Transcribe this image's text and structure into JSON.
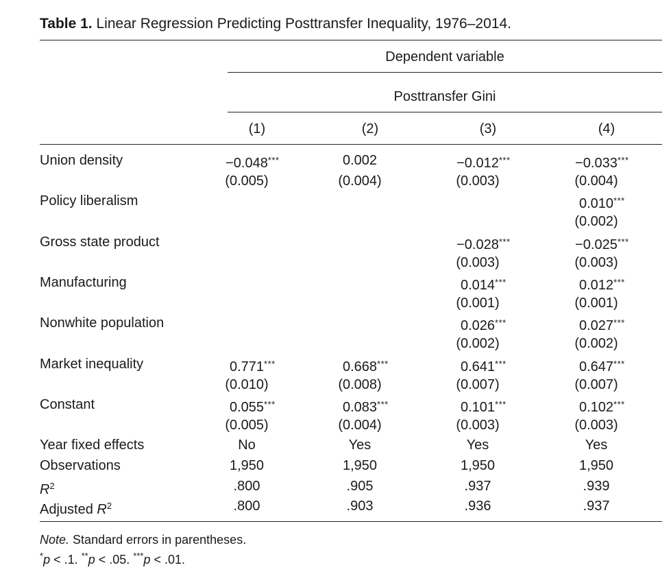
{
  "caption": {
    "label": "Table 1.",
    "title": "Linear Regression Predicting Posttransfer Inequality, 1976–2014."
  },
  "header": {
    "group": "Dependent variable",
    "dependent": "Posttransfer Gini",
    "columns": [
      "(1)",
      "(2)",
      "(3)",
      "(4)"
    ]
  },
  "rows": [
    {
      "label": "Union density",
      "coef": [
        "−0.048",
        "0.002",
        "−0.012",
        "−0.033"
      ],
      "stars": [
        "***",
        "",
        "***",
        "***"
      ],
      "se": [
        "(0.005)",
        "(0.004)",
        "(0.003)",
        "(0.004)"
      ]
    },
    {
      "label": "Policy liberalism",
      "coef": [
        "",
        "",
        "",
        "0.010"
      ],
      "stars": [
        "",
        "",
        "",
        "***"
      ],
      "se": [
        "",
        "",
        "",
        "(0.002)"
      ]
    },
    {
      "label": "Gross state product",
      "coef": [
        "",
        "",
        "−0.028",
        "−0.025"
      ],
      "stars": [
        "",
        "",
        "***",
        "***"
      ],
      "se": [
        "",
        "",
        "(0.003)",
        "(0.003)"
      ]
    },
    {
      "label": "Manufacturing",
      "coef": [
        "",
        "",
        "0.014",
        "0.012"
      ],
      "stars": [
        "",
        "",
        "***",
        "***"
      ],
      "se": [
        "",
        "",
        "(0.001)",
        "(0.001)"
      ]
    },
    {
      "label": "Nonwhite population",
      "coef": [
        "",
        "",
        "0.026",
        "0.027"
      ],
      "stars": [
        "",
        "",
        "***",
        "***"
      ],
      "se": [
        "",
        "",
        "(0.002)",
        "(0.002)"
      ]
    },
    {
      "label": "Market inequality",
      "coef": [
        "0.771",
        "0.668",
        "0.641",
        "0.647"
      ],
      "stars": [
        "***",
        "***",
        "***",
        "***"
      ],
      "se": [
        "(0.010)",
        "(0.008)",
        "(0.007)",
        "(0.007)"
      ]
    },
    {
      "label": "Constant",
      "coef": [
        "0.055",
        "0.083",
        "0.101",
        "0.102"
      ],
      "stars": [
        "***",
        "***",
        "***",
        "***"
      ],
      "se": [
        "(0.005)",
        "(0.004)",
        "(0.003)",
        "(0.003)"
      ]
    }
  ],
  "stats": [
    {
      "label": "Year fixed effects",
      "values": [
        "No",
        "Yes",
        "Yes",
        "Yes"
      ]
    },
    {
      "label": "Observations",
      "values": [
        "1,950",
        "1,950",
        "1,950",
        "1,950"
      ]
    },
    {
      "label_main": "R",
      "label_sup": "2",
      "values": [
        ".800",
        ".905",
        ".937",
        ".939"
      ]
    },
    {
      "label_pre": "Adjusted ",
      "label_main": "R",
      "label_sup": "2",
      "values": [
        ".800",
        ".903",
        ".936",
        ".937"
      ]
    }
  ],
  "note": {
    "label": "Note.",
    "text": "Standard errors in parentheses.",
    "sig": [
      {
        "stars": "*",
        "p": "p",
        "rest": " < .1. "
      },
      {
        "stars": "**",
        "p": "p",
        "rest": " < .05. "
      },
      {
        "stars": "***",
        "p": "p",
        "rest": " < .01."
      }
    ]
  }
}
